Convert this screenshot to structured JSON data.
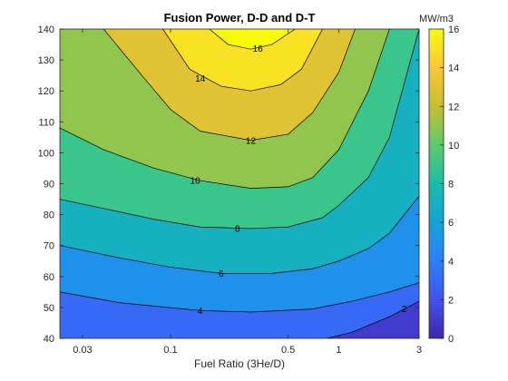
{
  "chart_data": {
    "type": "heatmap",
    "title": "Fusion Power, D-D and D-T",
    "xlabel": "Fuel Ratio (3He/D)",
    "ylabel": "",
    "x_scale": "log",
    "xlim": [
      0.022,
      3.0
    ],
    "ylim": [
      40,
      140
    ],
    "x_ticks": [
      0.03,
      0.1,
      0.5,
      1,
      3
    ],
    "x_tick_labels": [
      "0.03",
      "0.1",
      "0.5",
      "1",
      "3"
    ],
    "y_ticks": [
      40,
      50,
      60,
      70,
      80,
      90,
      100,
      110,
      120,
      130,
      140
    ],
    "y_tick_labels": [
      "40",
      "50",
      "60",
      "70",
      "80",
      "90",
      "100",
      "110",
      "120",
      "130",
      "140"
    ],
    "colorbar": {
      "label": "MW/m3",
      "range": [
        0,
        16
      ],
      "ticks": [
        0,
        2,
        4,
        6,
        8,
        10,
        12,
        14,
        16
      ],
      "tick_labels": [
        "0",
        "2",
        "4",
        "6",
        "8",
        "10",
        "12",
        "14",
        "16"
      ]
    },
    "contour_levels": [
      2,
      4,
      6,
      8,
      10,
      12,
      14,
      16
    ],
    "contour_lines": [
      {
        "level": 4,
        "label": "4",
        "points": [
          [
            0.022,
            55
          ],
          [
            0.05,
            51.5
          ],
          [
            0.15,
            49
          ],
          [
            0.3,
            48.5
          ],
          [
            0.7,
            49.5
          ],
          [
            1.2,
            52
          ],
          [
            2.0,
            55
          ],
          [
            3.0,
            58
          ]
        ]
      },
      {
        "level": 4,
        "label": "4",
        "points": [
          [
            0.022,
            55
          ],
          [
            0.05,
            51.5
          ],
          [
            0.15,
            49
          ],
          [
            0.3,
            48.5
          ],
          [
            0.7,
            49.5
          ],
          [
            1.2,
            52
          ],
          [
            2.0,
            55
          ],
          [
            3.0,
            58
          ]
        ]
      }
    ],
    "contours": [
      {
        "level": 2,
        "label": "2",
        "points": [
          [
            0.85,
            40
          ],
          [
            1.2,
            42
          ],
          [
            2.0,
            47
          ],
          [
            3.0,
            52
          ]
        ],
        "label_at": [
          2.45,
          49.5
        ]
      },
      {
        "level": 4,
        "label": "4",
        "points": [
          [
            0.022,
            55
          ],
          [
            0.05,
            51.5
          ],
          [
            0.15,
            49
          ],
          [
            0.3,
            48.5
          ],
          [
            0.7,
            49.5
          ],
          [
            1.2,
            52
          ],
          [
            2.0,
            55
          ],
          [
            3.0,
            58
          ]
        ],
        "label_at": [
          0.15,
          49
        ]
      },
      {
        "level": 6,
        "label": "6",
        "points": [
          [
            0.022,
            70
          ],
          [
            0.05,
            66
          ],
          [
            0.1,
            63
          ],
          [
            0.2,
            61
          ],
          [
            0.4,
            61
          ],
          [
            0.7,
            62.5
          ],
          [
            1.0,
            65
          ],
          [
            1.5,
            69
          ],
          [
            2.0,
            74
          ],
          [
            3.0,
            86
          ]
        ],
        "label_at": [
          0.2,
          61
        ]
      },
      {
        "level": 8,
        "label": "8",
        "points": [
          [
            0.022,
            85
          ],
          [
            0.04,
            82
          ],
          [
            0.08,
            78.5
          ],
          [
            0.15,
            76
          ],
          [
            0.3,
            75.5
          ],
          [
            0.5,
            76
          ],
          [
            0.8,
            79
          ],
          [
            1.0,
            83
          ],
          [
            1.5,
            92
          ],
          [
            2.0,
            105
          ],
          [
            3.0,
            140
          ]
        ],
        "label_at": [
          0.25,
          75.5
        ]
      },
      {
        "level": 10,
        "label": "10",
        "points": [
          [
            0.022,
            108
          ],
          [
            0.04,
            101
          ],
          [
            0.08,
            95
          ],
          [
            0.15,
            91
          ],
          [
            0.3,
            88.5
          ],
          [
            0.5,
            89
          ],
          [
            0.7,
            92
          ],
          [
            1.0,
            101
          ],
          [
            1.5,
            120
          ],
          [
            2.0,
            140
          ]
        ],
        "label_at": [
          0.14,
          91
        ]
      },
      {
        "level": 12,
        "label": "12",
        "points": [
          [
            0.04,
            140
          ],
          [
            0.07,
            124
          ],
          [
            0.1,
            114
          ],
          [
            0.15,
            107
          ],
          [
            0.3,
            104
          ],
          [
            0.5,
            106
          ],
          [
            0.7,
            113
          ],
          [
            1.0,
            126
          ],
          [
            1.25,
            140
          ]
        ],
        "label_at": [
          0.3,
          104
        ]
      },
      {
        "level": 14,
        "label": "14",
        "points": [
          [
            0.09,
            140
          ],
          [
            0.13,
            127
          ],
          [
            0.2,
            121.5
          ],
          [
            0.3,
            120
          ],
          [
            0.45,
            122
          ],
          [
            0.6,
            127
          ],
          [
            0.8,
            140
          ]
        ],
        "label_at": [
          0.15,
          124
        ]
      },
      {
        "level": 16,
        "label": "16",
        "points": [
          [
            0.17,
            140
          ],
          [
            0.22,
            135
          ],
          [
            0.3,
            133.5
          ],
          [
            0.4,
            135
          ],
          [
            0.55,
            140
          ]
        ],
        "label_at": [
          0.33,
          133.7
        ]
      }
    ]
  }
}
